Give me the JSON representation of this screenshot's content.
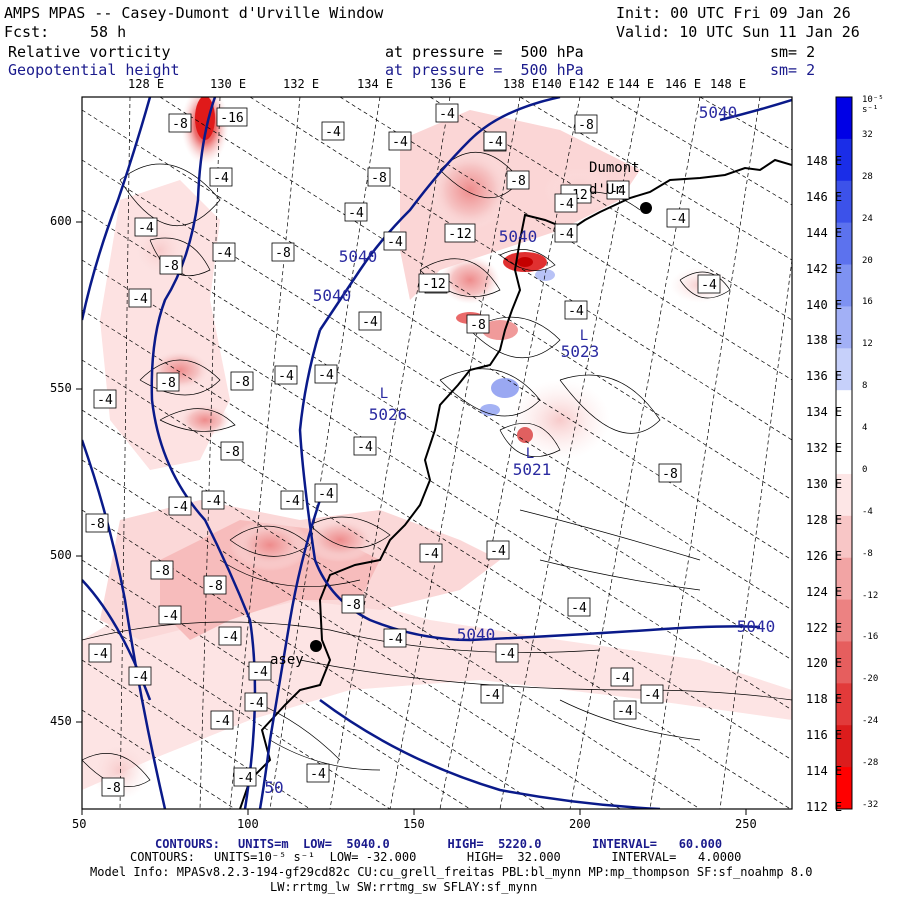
{
  "header": {
    "title": "AMPS MPAS -- Casey-Dumont d'Urville Window",
    "init": "Init: 00 UTC Fri 09 Jan 26",
    "fcst_label": "Fcst:",
    "fcst_value": "58 h",
    "valid": "Valid: 10 UTC Sun 11 Jan 26",
    "field1": {
      "name": "Relative vorticity",
      "level": "at pressure =  500 hPa",
      "smooth": "sm= 2"
    },
    "field2": {
      "name": "Geopotential height",
      "level": "at pressure =  500 hPa",
      "smooth": "sm= 2"
    }
  },
  "top_lon_labels": [
    "128 E",
    "130 E",
    "132 E",
    "134 E",
    "136 E",
    "138 E",
    "140 E",
    "142 E",
    "144 E",
    "146 E",
    "148 E"
  ],
  "right_lat_labels": [
    "148 E",
    "146 E",
    "144 E",
    "142 E",
    "140 E",
    "138 E",
    "136 E",
    "134 E",
    "132 E",
    "130 E",
    "128 E",
    "126 E",
    "124 E",
    "122 E",
    "120 E",
    "118 E",
    "116 E",
    "114 E",
    "112 E"
  ],
  "x_ticks": [
    "50",
    "100",
    "150",
    "200",
    "250"
  ],
  "y_ticks": [
    "600",
    "550",
    "500",
    "450"
  ],
  "colorbar": {
    "unit_label": "10⁻⁵ s⁻¹",
    "labels": [
      "32",
      "28",
      "24",
      "20",
      "16",
      "12",
      "8",
      "4",
      "0",
      "-4",
      "-8",
      "-12",
      "-16",
      "-20",
      "-24",
      "-28",
      "-32"
    ],
    "colors": [
      "#0000e6",
      "#1a2de8",
      "#3c52ea",
      "#5c72ee",
      "#7e92f2",
      "#a2b0f6",
      "#c6d0fa",
      "#ffffff",
      "#ffffff",
      "#fde6e6",
      "#f8c6c6",
      "#f2a4a4",
      "#ec8282",
      "#e65e5e",
      "#e23a3a",
      "#dc1c1c",
      "#ff0000"
    ]
  },
  "map_labels": {
    "contour_box_labels": [
      "-8",
      "-16",
      "-4",
      "-4",
      "-4",
      "-8",
      "-4",
      "-4",
      "-8",
      "-8",
      "-4",
      "-4",
      "-4",
      "-8",
      "-12",
      "-8",
      "-12",
      "-8",
      "-4",
      "-4",
      "-4",
      "-4",
      "-4",
      "-4",
      "-8",
      "-4",
      "-12",
      "-4",
      "-8",
      "-4",
      "-4",
      "-8",
      "-8",
      "-4",
      "-4",
      "-8",
      "-4",
      "-8",
      "-4",
      "-4",
      "-4",
      "-4",
      "-8",
      "-8",
      "-8",
      "-4",
      "-4",
      "-4",
      "-8",
      "-4",
      "-4",
      "-4",
      "-4",
      "-4",
      "-4",
      "-4",
      "-4",
      "-4",
      "-4",
      "-4",
      "-4",
      "-4",
      "-4",
      "-8",
      "-4"
    ],
    "height_labels": [
      "5040",
      "5040",
      "5040",
      "5040",
      "5040",
      "5040",
      "5026",
      "5023",
      "5021",
      "50"
    ],
    "low_labels": [
      "L",
      "L",
      "L"
    ],
    "place_labels": [
      "Dumont",
      "d'Ur",
      "asey"
    ]
  },
  "footer": {
    "line1_label": "CONTOURS:",
    "line1": "UNITS=m  LOW=  5040.0        HIGH=  5220.0       INTERVAL=   60.000",
    "line2_label": "CONTOURS:",
    "line2": "UNITS=10⁻⁵ s⁻¹  LOW= -32.000       HIGH=  32.000       INTERVAL=   4.0000",
    "model_info": "Model Info: MPASv8.2.3-194-gf29cd82c CU:cu_grell_freitas PBL:bl_mynn MP:mp_thompson SF:sf_noahmp 8.0",
    "model_info2": "LW:rrtmg_lw SW:rrtmg_sw SFLAY:sf_mynn"
  }
}
